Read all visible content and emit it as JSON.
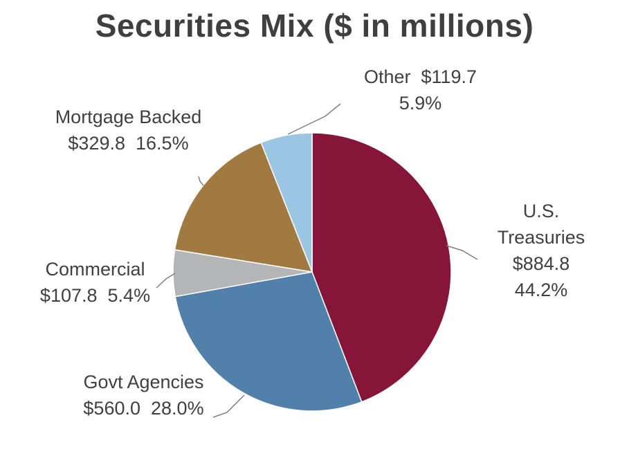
{
  "chart_data": {
    "type": "pie",
    "title": "Securities Mix ($ in millions)",
    "slices": [
      {
        "key": "treasuries",
        "name_lines": [
          "U.S.",
          "Treasuries"
        ],
        "value_label": "$884.8",
        "pct_label": "44.2%",
        "value": 884.8,
        "percent": 44.2,
        "color": "#85163a"
      },
      {
        "key": "govt",
        "name_lines": [
          "Govt Agencies"
        ],
        "value_label": "$560.0",
        "pct_label": "28.0%",
        "value": 560.0,
        "percent": 28.0,
        "color": "#5181aa"
      },
      {
        "key": "commercial",
        "name_lines": [
          "Commercial"
        ],
        "value_label": "$107.8",
        "pct_label": "5.4%",
        "value": 107.8,
        "percent": 5.4,
        "color": "#b4b5b7"
      },
      {
        "key": "mortgage",
        "name_lines": [
          "Mortgage Backed"
        ],
        "value_label": "$329.8",
        "pct_label": "16.5%",
        "value": 329.8,
        "percent": 16.5,
        "color": "#a07a41"
      },
      {
        "key": "other",
        "name_lines": [
          "Other"
        ],
        "value_label": "$119.7",
        "pct_label": "5.9%",
        "value": 119.7,
        "percent": 5.9,
        "color": "#9ac6e3"
      }
    ]
  }
}
